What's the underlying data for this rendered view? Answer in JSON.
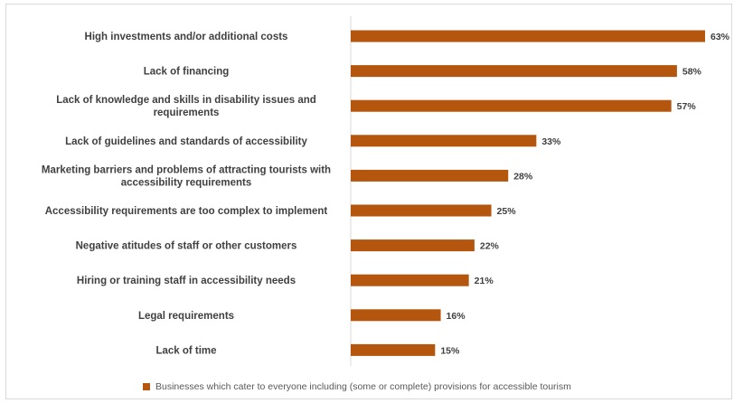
{
  "chart_data": {
    "type": "bar",
    "orientation": "horizontal",
    "categories": [
      [
        "High investments and/or additional costs"
      ],
      [
        "Lack of financing"
      ],
      [
        "Lack of knowledge and skills in disability issues and",
        "requirements"
      ],
      [
        "Lack of guidelines and standards of accessibility"
      ],
      [
        "Marketing barriers and problems of attracting tourists with",
        "accessibility requirements"
      ],
      [
        "Accessibility requirements are too complex to implement"
      ],
      [
        "Negative atitudes of staff or other customers"
      ],
      [
        "Hiring or training staff in accessibility needs"
      ],
      [
        "Legal requirements"
      ],
      [
        "Lack of time"
      ]
    ],
    "values": [
      63,
      58,
      57,
      33,
      28,
      25,
      22,
      21,
      16,
      15
    ],
    "value_labels": [
      "63%",
      "58%",
      "57%",
      "33%",
      "28%",
      "25%",
      "22%",
      "21%",
      "16%",
      "15%"
    ],
    "xlim": [
      0,
      63
    ],
    "series_color": "#b5560f",
    "grid": false,
    "legend": {
      "placement": "bottom",
      "label": "Businesses which cater to everyone including (some or complete) provisions for accessible tourism"
    }
  }
}
